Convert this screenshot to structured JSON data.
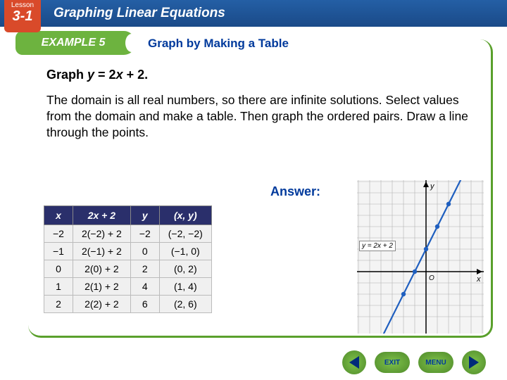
{
  "lesson": {
    "label": "Lesson",
    "number": "3-1"
  },
  "topbar_title": "Graphing Linear Equations",
  "example": {
    "label": "EXAMPLE 5",
    "title": "Graph by Making a Table"
  },
  "problem_prefix": "Graph ",
  "problem_eq_y": "y",
  "problem_eq_mid": " = 2",
  "problem_eq_x": "x",
  "problem_eq_end": " + 2.",
  "body": "The domain is all real numbers, so there are infinite solutions. Select values from the domain and make a table. Then graph the ordered pairs. Draw a line through the points.",
  "answer_label": "Answer:",
  "table": {
    "headers": [
      "x",
      "2x + 2",
      "y",
      "(x, y)"
    ],
    "rows": [
      [
        "−2",
        "2(−2) + 2",
        "−2",
        "(−2, −2)"
      ],
      [
        "−1",
        "2(−1) + 2",
        "0",
        "(−1, 0)"
      ],
      [
        "0",
        "2(0) + 2",
        "2",
        "(0, 2)"
      ],
      [
        "1",
        "2(1) + 2",
        "4",
        "(1, 4)"
      ],
      [
        "2",
        "2(2) + 2",
        "6",
        "(2, 6)"
      ]
    ]
  },
  "graph": {
    "equation_label": "y = 2x + 2",
    "x_axis_label": "x",
    "y_axis_label": "y",
    "origin_label": "O",
    "grid_color": "#b0b0b0",
    "axis_color": "#000000",
    "line_color": "#1f5fbf",
    "point_color": "#1f5fbf",
    "bg_color": "#f4f4f4",
    "points": [
      [
        -2,
        -2
      ],
      [
        -1,
        0
      ],
      [
        0,
        2
      ],
      [
        1,
        4
      ],
      [
        2,
        6
      ]
    ],
    "xlim": [
      -6,
      5
    ],
    "ylim": [
      -4,
      8
    ],
    "cell": 16
  },
  "nav": {
    "exit": "EXIT",
    "menu": "MENU"
  }
}
